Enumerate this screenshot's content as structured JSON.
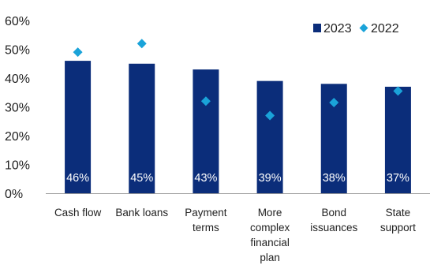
{
  "chart_data": {
    "type": "bar",
    "categories": [
      [
        "Cash flow"
      ],
      [
        "Bank loans"
      ],
      [
        "Payment",
        "terms"
      ],
      [
        "More",
        "complex",
        "financial",
        "plan"
      ],
      [
        "Bond",
        "issuances"
      ],
      [
        "State",
        "support"
      ]
    ],
    "series": [
      {
        "name": "2023",
        "kind": "bar",
        "values": [
          46,
          45,
          43,
          39,
          38,
          37
        ],
        "color": "#0b2d7a",
        "labels": [
          "46%",
          "45%",
          "43%",
          "39%",
          "38%",
          "37%"
        ]
      },
      {
        "name": "2022",
        "kind": "marker-diamond",
        "values": [
          49,
          52,
          32,
          27,
          31.5,
          35.5
        ],
        "color": "#1aa3d9"
      }
    ],
    "ylim": [
      0,
      60
    ],
    "yticks": [
      "0%",
      "10%",
      "20%",
      "30%",
      "40%",
      "50%",
      "60%"
    ],
    "legend": "top-right",
    "grid": false
  }
}
